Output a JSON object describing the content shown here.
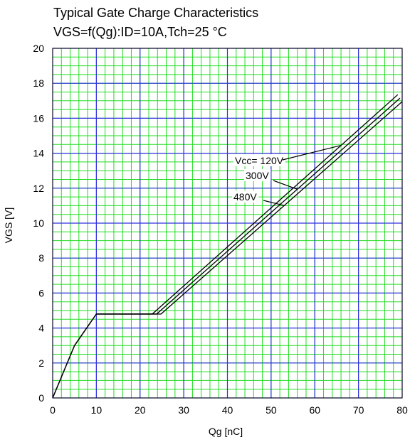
{
  "chart_data": {
    "type": "line",
    "title": "Typical Gate Charge Characteristics",
    "subtitle": "VGS=f(Qg):ID=10A,Tch=25 °C",
    "xlabel": "Qg [nC]",
    "ylabel": "VGS [V]",
    "xlim": [
      0,
      80
    ],
    "ylim": [
      0,
      20
    ],
    "x_ticks": [
      "0",
      "10",
      "20",
      "30",
      "40",
      "50",
      "60",
      "70",
      "80"
    ],
    "y_ticks": [
      "0",
      "2",
      "4",
      "6",
      "8",
      "10",
      "12",
      "14",
      "16",
      "18",
      "20"
    ],
    "grid": true,
    "colors": {
      "major_grid": "#3030e0",
      "minor_grid": "#22dd22",
      "line": "#000000",
      "axes": "#000000"
    },
    "series": [
      {
        "name": "Vcc= 120V",
        "points": [
          [
            0,
            0
          ],
          [
            5,
            3
          ],
          [
            10,
            4.8
          ],
          [
            22.8,
            4.8
          ],
          [
            79,
            17.35
          ]
        ]
      },
      {
        "name": "300V",
        "points": [
          [
            0,
            0
          ],
          [
            5,
            3
          ],
          [
            10,
            4.8
          ],
          [
            23.8,
            4.8
          ],
          [
            79.5,
            17.15
          ]
        ]
      },
      {
        "name": "480V",
        "points": [
          [
            0,
            0
          ],
          [
            5,
            3
          ],
          [
            10,
            4.8
          ],
          [
            24.8,
            4.8
          ],
          [
            80,
            16.95
          ]
        ]
      }
    ],
    "annotations": [
      {
        "text": "Vcc= 120V",
        "series": 0
      },
      {
        "text": "300V",
        "series": 1
      },
      {
        "text": "480V",
        "series": 2
      }
    ]
  }
}
